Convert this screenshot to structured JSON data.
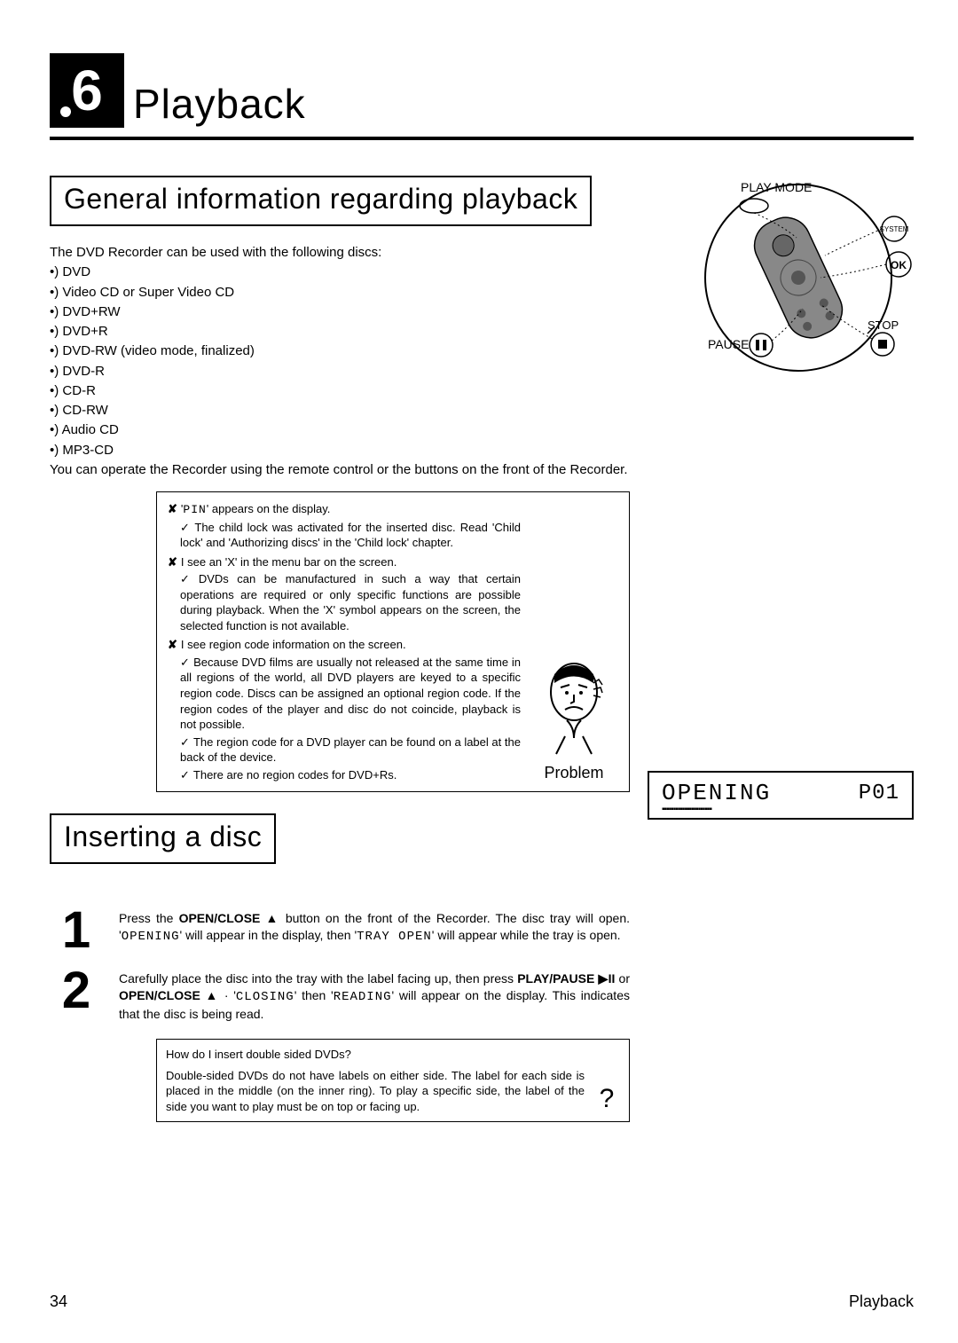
{
  "chapter": {
    "number": "6",
    "title": "Playback"
  },
  "section1": {
    "heading": "General information regarding playback",
    "intro": "The DVD Recorder can be used with the following discs:",
    "disc_types": [
      "DVD",
      "Video CD or Super Video CD",
      "DVD+RW",
      "DVD+R",
      "DVD-RW (video mode, finalized)",
      "DVD-R",
      "CD-R",
      "CD-RW",
      "Audio CD",
      "MP3-CD"
    ],
    "outro": "You can operate the Recorder using the remote control or the buttons on the front of the Recorder."
  },
  "problem_box": {
    "items": [
      {
        "issue_prefix": "'",
        "issue_lcd": "PIN",
        "issue_suffix": "' appears on the display.",
        "answers": [
          "The child lock was activated for the inserted disc. Read 'Child lock' and 'Authorizing discs' in the 'Child lock' chapter."
        ]
      },
      {
        "issue": "I see an 'X' in the menu bar on the screen.",
        "answers": [
          "DVDs can be manufactured in such a way that certain operations are required or only specific functions are possible during playback. When the 'X' symbol appears on the screen, the selected function is not available."
        ]
      },
      {
        "issue": "I see region code information on the screen.",
        "answers": [
          "Because DVD films are usually not released at the same time in all regions of the world, all DVD players are keyed to a specific region code. Discs can be assigned an optional region code. If the region codes of the player and disc do not coincide, playback is not possible.",
          "The region code for a DVD player can be found on a label at the back of the device.",
          "There are no region codes for DVD+Rs."
        ]
      }
    ],
    "label": "Problem"
  },
  "section2": {
    "heading": "Inserting a disc",
    "steps": [
      {
        "n": "1",
        "parts": [
          "Press the ",
          "**OPEN/CLOSE ▲**",
          " button on the front of the Recorder. The disc tray will open. '",
          "~OPENING~",
          "' will appear in the display, then '",
          "~TRAY OPEN~",
          "' will appear while the tray is open."
        ]
      },
      {
        "n": "2",
        "parts": [
          "Carefully place the disc into the tray with the label facing up, then press ",
          "**PLAY/PAUSE ▶II**",
          " or ",
          "**OPEN/CLOSE ▲**",
          " · '",
          "~CLOSING~",
          "' then '",
          "~READING~",
          "' will appear on the display. This indicates that the disc is being read."
        ]
      }
    ]
  },
  "info_box": {
    "title": "How do I insert double sided DVDs?",
    "text": "Double-sided DVDs do not have labels on either side. The label for each side is placed in the middle (on the inner ring). To play a specific side, the label of the side you want to play must be on top or facing up.",
    "mark": "?"
  },
  "remote": {
    "top_label": "PLAY MODE",
    "system": "SYSTEM",
    "ok": "OK",
    "stop": "STOP",
    "pause": "PAUSE"
  },
  "display": {
    "main": "OPENING",
    "right": "P01",
    "ticks": "▪▪▪▪▪▪▪▪▪▪▪▪▪▪▪▪▪▪▪▪▪▪"
  },
  "footer": {
    "page": "34",
    "section": "Playback"
  },
  "style": {
    "bg": "#ffffff",
    "text": "#000000",
    "chapter_box_size": 84,
    "chapter_num_fontsize": 64,
    "chapter_title_fontsize": 46,
    "section_heading_fontsize": 32,
    "body_fontsize": 15,
    "problem_fontsize": 13,
    "step_num_fontsize": 58,
    "step_text_fontsize": 14,
    "footer_fontsize": 18,
    "display_main_fontsize": 26,
    "display_sub_fontsize": 24
  }
}
